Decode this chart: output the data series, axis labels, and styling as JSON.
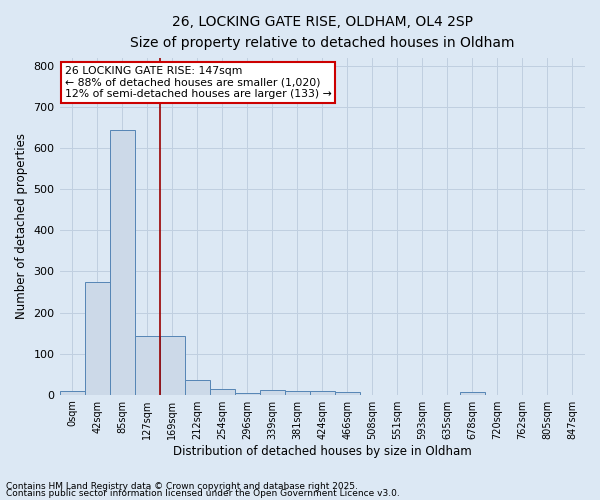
{
  "title1": "26, LOCKING GATE RISE, OLDHAM, OL4 2SP",
  "title2": "Size of property relative to detached houses in Oldham",
  "xlabel": "Distribution of detached houses by size in Oldham",
  "ylabel": "Number of detached properties",
  "bar_labels": [
    "0sqm",
    "42sqm",
    "85sqm",
    "127sqm",
    "169sqm",
    "212sqm",
    "254sqm",
    "296sqm",
    "339sqm",
    "381sqm",
    "424sqm",
    "466sqm",
    "508sqm",
    "551sqm",
    "593sqm",
    "635sqm",
    "678sqm",
    "720sqm",
    "762sqm",
    "805sqm",
    "847sqm"
  ],
  "bar_values": [
    8,
    275,
    645,
    143,
    143,
    35,
    15,
    5,
    12,
    10,
    8,
    7,
    0,
    0,
    0,
    0,
    7,
    0,
    0,
    0,
    0
  ],
  "bar_color": "#ccd9e8",
  "bar_edge_color": "#5585b5",
  "vline_x": 3.5,
  "vline_color": "#990000",
  "annotation_text": "26 LOCKING GATE RISE: 147sqm\n← 88% of detached houses are smaller (1,020)\n12% of semi-detached houses are larger (133) →",
  "annotation_box_color": "#ffffff",
  "annotation_box_edge": "#cc0000",
  "ylim": [
    0,
    820
  ],
  "yticks": [
    0,
    100,
    200,
    300,
    400,
    500,
    600,
    700,
    800
  ],
  "grid_color": "#c0cfe0",
  "bg_color": "#dce8f4",
  "footnote1": "Contains HM Land Registry data © Crown copyright and database right 2025.",
  "footnote2": "Contains public sector information licensed under the Open Government Licence v3.0."
}
